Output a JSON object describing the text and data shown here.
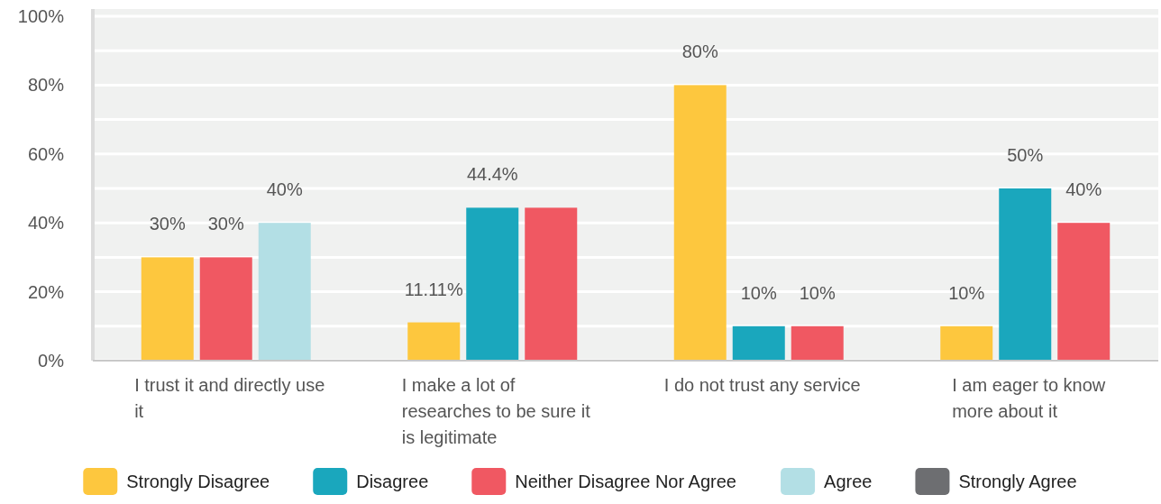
{
  "chart_data": {
    "type": "bar",
    "categories": [
      "I trust it and directly use it",
      "I make a lot of researches to be sure it is legitimate",
      "I do not trust any service",
      "I am eager to know more about it"
    ],
    "series": [
      {
        "name": "Strongly Disagree",
        "color": "#fdc73e",
        "values": [
          30,
          11.11,
          80,
          10
        ],
        "value_labels": [
          "30%",
          "11.11%",
          "80%",
          "10%"
        ]
      },
      {
        "name": "Disagree",
        "color": "#1aa7bd",
        "values": [
          null,
          44.4,
          10,
          50
        ],
        "value_labels": [
          null,
          "44.4%",
          "10%",
          "50%"
        ]
      },
      {
        "name": "Neither Disagree Nor Agree",
        "color": "#f05862",
        "values": [
          30,
          44.4,
          10,
          40
        ],
        "value_labels": [
          "30%",
          null,
          "10%",
          "40%"
        ]
      },
      {
        "name": "Agree",
        "color": "#b3dfe5",
        "values": [
          40,
          null,
          null,
          null
        ],
        "value_labels": [
          "40%",
          null,
          null,
          null
        ]
      },
      {
        "name": "Strongly Agree",
        "color": "#6d6e71",
        "values": [
          null,
          null,
          null,
          null
        ],
        "value_labels": [
          null,
          null,
          null,
          null
        ]
      }
    ],
    "ylim": [
      0,
      100
    ],
    "yticks": [
      {
        "value": 0,
        "label": "0%"
      },
      {
        "value": 10,
        "label": null
      },
      {
        "value": 20,
        "label": "20%"
      },
      {
        "value": 30,
        "label": null
      },
      {
        "value": 40,
        "label": "40%"
      },
      {
        "value": 50,
        "label": null
      },
      {
        "value": 60,
        "label": "60%"
      },
      {
        "value": 70,
        "label": null
      },
      {
        "value": 80,
        "label": "80%"
      },
      {
        "value": 90,
        "label": null
      },
      {
        "value": 100,
        "label": "100%"
      }
    ],
    "grid": "y",
    "legend": "bottom"
  }
}
